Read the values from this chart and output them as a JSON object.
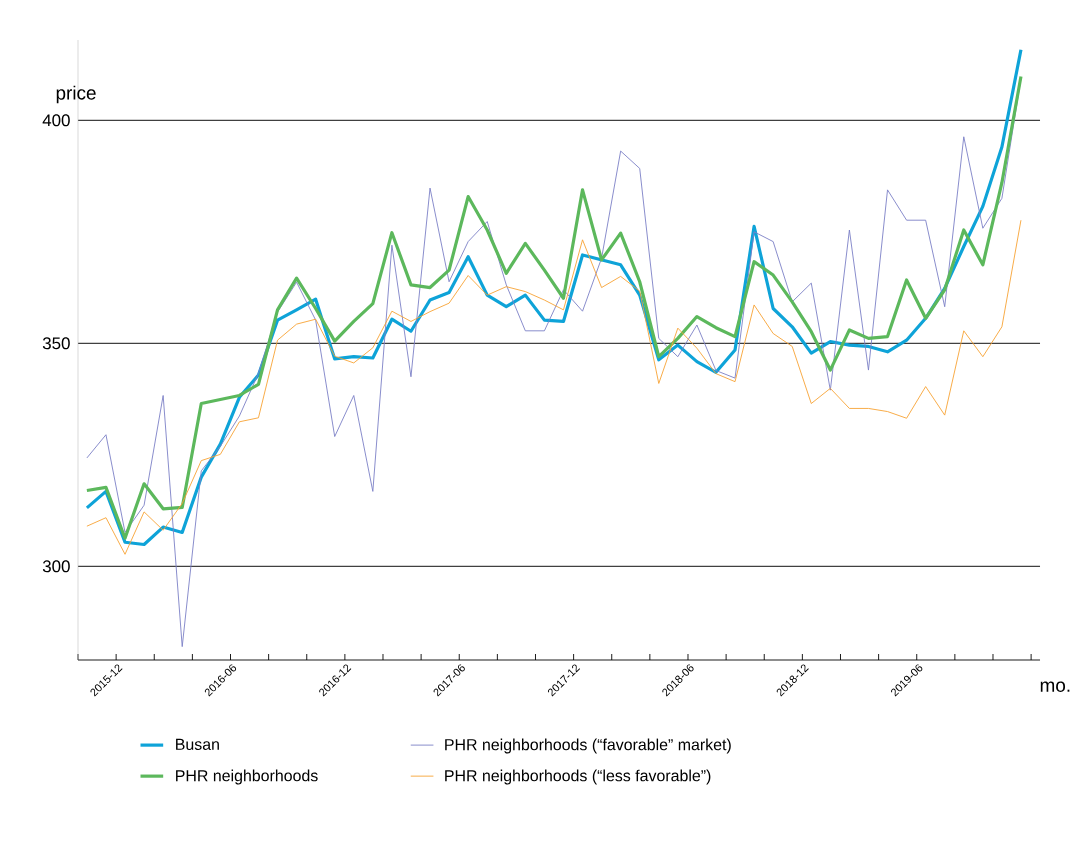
{
  "chart_data": {
    "type": "line",
    "xlabel": "mo.",
    "ylabel": "price",
    "x": [
      "2015-10-15",
      "2015-11-15",
      "2015-12-15",
      "2016-01-15",
      "2016-02-15",
      "2016-03-15",
      "2016-04-15",
      "2016-05-15",
      "2016-06-15",
      "2016-07-15",
      "2016-08-15",
      "2016-09-15",
      "2016-10-15",
      "2016-11-15",
      "2016-12-15",
      "2017-01-15",
      "2017-02-15",
      "2017-03-15",
      "2017-04-15",
      "2017-05-15",
      "2017-06-15",
      "2017-07-15",
      "2017-08-15",
      "2017-09-15",
      "2017-10-15",
      "2017-11-15",
      "2017-12-15",
      "2018-01-15",
      "2018-02-15",
      "2018-03-15",
      "2018-04-15",
      "2018-05-15",
      "2018-06-15",
      "2018-07-15",
      "2018-08-15",
      "2018-09-15",
      "2018-10-15",
      "2018-11-15",
      "2018-12-15",
      "2019-01-15",
      "2019-02-15",
      "2019-03-15",
      "2019-04-15",
      "2019-05-15",
      "2019-06-15",
      "2019-07-15",
      "2019-08-15",
      "2019-09-15",
      "2019-10-15",
      "2019-11-15"
    ],
    "series": [
      {
        "name": "Busan",
        "color": "#0ea3d8",
        "values": [
          313.1,
          316.8,
          305.4,
          304.9,
          308.8,
          307.6,
          320,
          327.4,
          337.9,
          342.9,
          355.2,
          357.5,
          359.9,
          346.5,
          347,
          346.7,
          355.4,
          352.7,
          359.7,
          361.4,
          369.4,
          360.8,
          358.2,
          360.8,
          355.2,
          354.9,
          369.8,
          368.7,
          367.6,
          360.8,
          346.3,
          349.6,
          345.9,
          343.5,
          348.5,
          376.2,
          357.8,
          353.7,
          347.8,
          350.4,
          349.6,
          349.3,
          348.1,
          350.7,
          355.6,
          362.3,
          371.7,
          380.7,
          394,
          415.8
        ]
      },
      {
        "name": "PHR neighborhoods (“favorable” market)",
        "color": "#7b7fc6",
        "values": [
          324.3,
          329.5,
          307.6,
          313.7,
          338.3,
          282,
          321.4,
          326.9,
          333.7,
          343.3,
          357,
          363.7,
          355.2,
          329.1,
          338.3,
          316.8,
          372,
          342.5,
          384.8,
          363.8,
          372.8,
          377.3,
          363.1,
          352.8,
          352.8,
          362,
          357.2,
          369.1,
          393.1,
          389.2,
          351.1,
          347,
          354.1,
          343.9,
          342.2,
          375,
          372.8,
          359.3,
          363.5,
          339.5,
          375.4,
          344,
          384.4,
          377.6,
          377.6,
          358.2,
          396.3,
          375.8,
          382.5,
          409.4
        ]
      },
      {
        "name": "PHR neighborhoods",
        "color": "#5cb85c",
        "values": [
          317,
          317.7,
          306.3,
          318.5,
          312.9,
          313.2,
          336.5,
          337.4,
          338.3,
          340.8,
          357.5,
          364.6,
          357.8,
          350.5,
          354.9,
          358.9,
          374.8,
          363.1,
          362.5,
          366.4,
          382.9,
          375.4,
          365.7,
          372.4,
          366.4,
          360.1,
          384.4,
          368.7,
          374.7,
          363.8,
          347,
          351.1,
          356,
          353.5,
          351.5,
          368.3,
          365.3,
          359.3,
          352.6,
          344,
          353,
          351.1,
          351.5,
          364.2,
          355.6,
          362,
          375.4,
          367.6,
          386,
          409.8
        ]
      },
      {
        "name": "PHR neighborhoods (“less favorable”)",
        "color": "#f7a234",
        "values": [
          309,
          310.9,
          302.7,
          312.2,
          308.1,
          314.1,
          323.7,
          325.1,
          332.4,
          333.3,
          350.7,
          354.3,
          355.4,
          347.1,
          345.6,
          349,
          357.2,
          354.9,
          357.1,
          359,
          365.2,
          360.8,
          362.7,
          361.6,
          359.7,
          357.5,
          373.2,
          362.5,
          365,
          361.7,
          341,
          353.4,
          348.9,
          343.2,
          341.4,
          358.6,
          352.2,
          349.3,
          336.5,
          339.9,
          335.4,
          335.4,
          334.7,
          333.2,
          340.3,
          333.9,
          352.8,
          347,
          353.7,
          377.6
        ]
      }
    ],
    "xlim": [
      "2015-10-01",
      "2019-12-15"
    ],
    "xticks": [
      {
        "value": "2015-10",
        "label": null
      },
      {
        "value": "2015-12",
        "label": "2015-12"
      },
      {
        "value": "2016-02",
        "label": null
      },
      {
        "value": "2016-04",
        "label": null
      },
      {
        "value": "2016-06",
        "label": "2016-06"
      },
      {
        "value": "2016-08",
        "label": null
      },
      {
        "value": "2016-10",
        "label": null
      },
      {
        "value": "2016-12",
        "label": "2016-12"
      },
      {
        "value": "2017-02",
        "label": null
      },
      {
        "value": "2017-04",
        "label": null
      },
      {
        "value": "2017-06",
        "label": "2017-06"
      },
      {
        "value": "2017-08",
        "label": null
      },
      {
        "value": "2017-10",
        "label": null
      },
      {
        "value": "2017-12",
        "label": "2017-12"
      },
      {
        "value": "2018-02",
        "label": null
      },
      {
        "value": "2018-04",
        "label": null
      },
      {
        "value": "2018-06",
        "label": "2018-06"
      },
      {
        "value": "2018-08",
        "label": null
      },
      {
        "value": "2018-10",
        "label": null
      },
      {
        "value": "2018-12",
        "label": "2018-12"
      },
      {
        "value": "2019-02",
        "label": null
      },
      {
        "value": "2019-04",
        "label": null
      },
      {
        "value": "2019-06",
        "label": "2019-06"
      },
      {
        "value": "2019-08",
        "label": null
      },
      {
        "value": "2019-10",
        "label": null
      },
      {
        "value": "2019-12",
        "label": null
      }
    ],
    "ylim": [
      279,
      418
    ],
    "yticks": [
      300,
      350,
      400
    ],
    "grid": "y",
    "legend": "bottom"
  }
}
